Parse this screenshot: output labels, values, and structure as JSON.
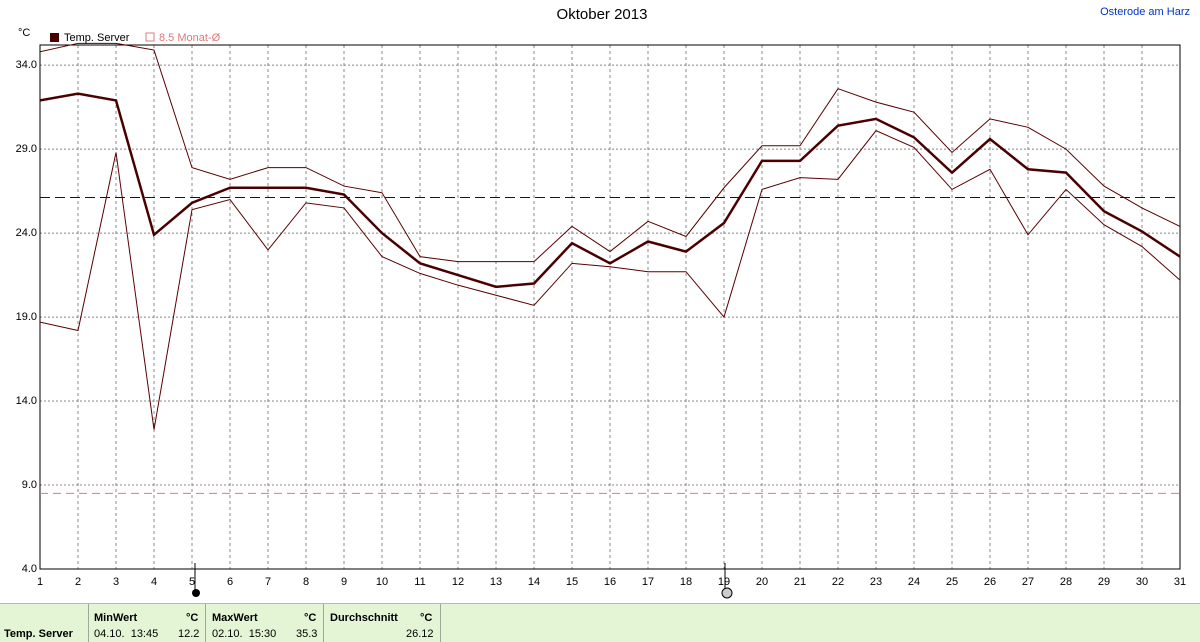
{
  "chart_data": {
    "type": "line",
    "title": "Oktober 2013",
    "subtitle": "Osterode am Harz",
    "y_label": "°C",
    "x": [
      1,
      2,
      3,
      4,
      5,
      6,
      7,
      8,
      9,
      10,
      11,
      12,
      13,
      14,
      15,
      16,
      17,
      18,
      19,
      20,
      21,
      22,
      23,
      24,
      25,
      26,
      27,
      28,
      29,
      30,
      31
    ],
    "xlim": [
      1,
      31
    ],
    "xticks": [
      1,
      2,
      3,
      4,
      5,
      6,
      7,
      8,
      9,
      10,
      11,
      12,
      13,
      14,
      15,
      16,
      17,
      18,
      19,
      20,
      21,
      22,
      23,
      24,
      25,
      26,
      27,
      28,
      29,
      30,
      31
    ],
    "ylim": [
      4,
      35.2
    ],
    "yticks": [
      {
        "value": 4,
        "label": "4.0"
      },
      {
        "value": 9,
        "label": "9.0"
      },
      {
        "value": 14,
        "label": "14.0"
      },
      {
        "value": 19,
        "label": "19.0"
      },
      {
        "value": 24,
        "label": "24.0"
      },
      {
        "value": 29,
        "label": "29.0"
      },
      {
        "value": 34,
        "label": "34.0"
      }
    ],
    "grid": true,
    "series": [
      {
        "name": "Temp. Server",
        "color": "#4a0000",
        "values": [
          31.9,
          32.3,
          31.9,
          23.9,
          25.8,
          26.7,
          26.7,
          26.7,
          26.3,
          24.0,
          22.2,
          21.5,
          20.8,
          21.0,
          23.4,
          22.2,
          23.5,
          22.9,
          24.6,
          28.3,
          28.3,
          30.4,
          30.8,
          29.7,
          27.6,
          29.6,
          27.8,
          27.6,
          25.3,
          24.1,
          22.6
        ]
      },
      {
        "color": "#5a0000",
        "values": [
          34.8,
          35.3,
          35.3,
          34.9,
          27.9,
          27.2,
          27.9,
          27.9,
          26.8,
          26.4,
          22.6,
          22.3,
          22.3,
          22.3,
          24.4,
          22.9,
          24.7,
          23.8,
          26.7,
          29.2,
          29.2,
          32.6,
          31.8,
          31.2,
          28.8,
          30.8,
          30.3,
          29.0,
          26.8,
          25.5,
          24.4
        ]
      },
      {
        "color": "#5a0000",
        "values": [
          18.7,
          18.2,
          28.8,
          12.3,
          25.4,
          26.0,
          23.0,
          25.8,
          25.5,
          22.6,
          21.6,
          20.9,
          20.3,
          19.7,
          22.2,
          22.0,
          21.7,
          21.7,
          19.0,
          26.6,
          27.3,
          27.2,
          30.1,
          29.1,
          26.6,
          27.8,
          23.9,
          26.6,
          24.5,
          23.2,
          21.2
        ]
      }
    ],
    "reference_line": {
      "label": "8.5 Monat-Ø",
      "value": 8.5,
      "color": "#e07878"
    },
    "summary": {
      "headers": [
        "MinWert",
        "°C",
        "MaxWert",
        "°C",
        "Durchschnitt",
        "°C"
      ],
      "rows": [
        {
          "label": "Temp. Server",
          "min_time": "04.10.  13:45",
          "min": 12.2,
          "max_time": "02.10.  15:30",
          "max": 35.3,
          "mean": 26.12
        }
      ]
    }
  }
}
